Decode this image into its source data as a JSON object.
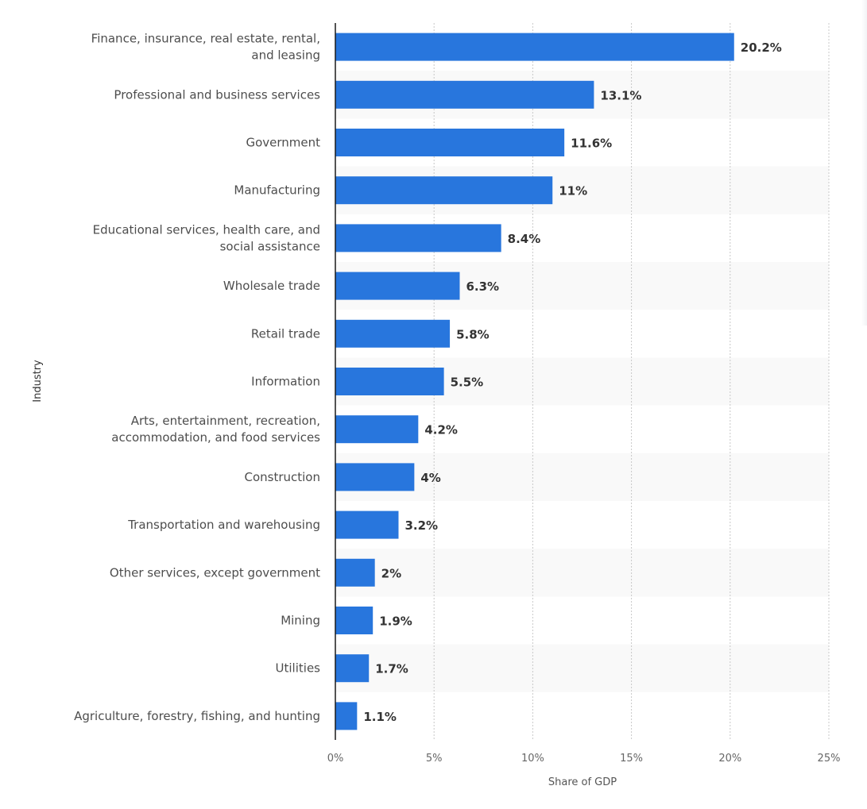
{
  "chart_data": {
    "type": "bar",
    "orientation": "horizontal",
    "title": "",
    "xlabel": "Share of GDP",
    "ylabel": "Industry",
    "xlim": [
      0,
      25
    ],
    "xticks": [
      0,
      5,
      10,
      15,
      20,
      25
    ],
    "xtick_labels": [
      "0%",
      "5%",
      "10%",
      "15%",
      "20%",
      "25%"
    ],
    "grid": true,
    "bar_color": "#2876dd",
    "band_color": "#f9f9f9",
    "categories": [
      [
        "Finance, insurance, real estate, rental,",
        "and leasing"
      ],
      [
        "Professional and business services"
      ],
      [
        "Government"
      ],
      [
        "Manufacturing"
      ],
      [
        "Educational services, health care, and",
        "social assistance"
      ],
      [
        "Wholesale trade"
      ],
      [
        "Retail trade"
      ],
      [
        "Information"
      ],
      [
        "Arts, entertainment, recreation,",
        "accommodation, and food services"
      ],
      [
        "Construction"
      ],
      [
        "Transportation and warehousing"
      ],
      [
        "Other services, except government"
      ],
      [
        "Mining"
      ],
      [
        "Utilities"
      ],
      [
        "Agriculture, forestry, fishing, and hunting"
      ]
    ],
    "values": [
      20.2,
      13.1,
      11.6,
      11,
      8.4,
      6.3,
      5.8,
      5.5,
      4.2,
      4,
      3.2,
      2,
      1.9,
      1.7,
      1.1
    ],
    "value_labels": [
      "20.2%",
      "13.1%",
      "11.6%",
      "11%",
      "8.4%",
      "6.3%",
      "5.8%",
      "5.5%",
      "4.2%",
      "4%",
      "3.2%",
      "2%",
      "1.9%",
      "1.7%",
      "1.1%"
    ]
  }
}
